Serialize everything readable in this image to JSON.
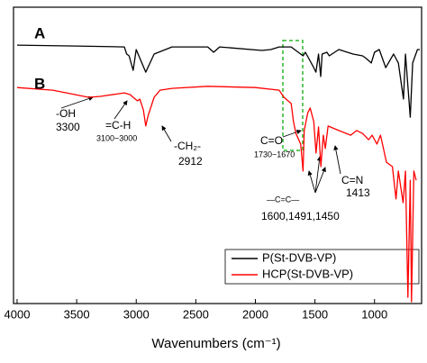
{
  "chart_data": {
    "type": "line",
    "x_label": "Wavenumbers (cm⁻¹)",
    "xlim": [
      4030,
      605
    ],
    "xticks": [
      4000,
      3500,
      3000,
      2500,
      2000,
      1500,
      1000
    ],
    "ylim": [
      0,
      100
    ],
    "legend": "lower right",
    "series": [
      {
        "name": "P(St-DVB-VP)",
        "color": "#000000",
        "x": [
          4000,
          3500,
          3100,
          3080,
          3060,
          3026,
          3000,
          2920,
          2850,
          2700,
          2400,
          2350,
          2300,
          1945,
          1870,
          1800,
          1700,
          1600,
          1580,
          1510,
          1492,
          1470,
          1452,
          1440,
          1400,
          1380,
          1300,
          1180,
          1100,
          1070,
          1028,
          1000,
          960,
          906,
          840,
          800,
          757,
          740,
          700,
          680,
          640,
          620
        ],
        "values": [
          87.2,
          86.9,
          86.6,
          84.2,
          83.6,
          78.7,
          85.7,
          78.1,
          84.2,
          86.6,
          86.6,
          84.8,
          86.6,
          85.4,
          85.7,
          86.6,
          86.6,
          83.6,
          84.8,
          79.6,
          78.1,
          84.2,
          76.6,
          84.2,
          84.8,
          83.6,
          85.7,
          84.2,
          83.6,
          82.7,
          81.2,
          84.8,
          85.7,
          79.6,
          84.2,
          81.2,
          69.0,
          84.2,
          62.9,
          81.2,
          85.7,
          85.7
        ]
      },
      {
        "name": "HCP(St-DVB-VP)",
        "color": "#ff0000",
        "x": [
          4000,
          3700,
          3400,
          3300,
          3100,
          3050,
          3026,
          2990,
          2970,
          2940,
          2920,
          2900,
          2850,
          2800,
          2700,
          2400,
          2000,
          1800,
          1760,
          1700,
          1680,
          1660,
          1620,
          1600,
          1590,
          1560,
          1540,
          1510,
          1491,
          1470,
          1450,
          1430,
          1413,
          1390,
          1300,
          1200,
          1150,
          1100,
          1050,
          1020,
          980,
          950,
          900,
          850,
          820,
          800,
          760,
          740,
          720,
          700,
          690,
          670,
          650
        ],
        "values": [
          72.9,
          72.0,
          69.6,
          69.9,
          71.1,
          70.5,
          69.6,
          68.4,
          69.0,
          65.3,
          59.9,
          63.5,
          69.6,
          72.0,
          72.6,
          73.3,
          72.9,
          72.0,
          69.6,
          67.5,
          61.4,
          57.4,
          53.8,
          44.7,
          58.4,
          64.4,
          66.0,
          61.4,
          50.8,
          59.6,
          46.2,
          56.8,
          52.3,
          59.9,
          58.4,
          56.8,
          58.4,
          57.4,
          55.3,
          56.8,
          53.8,
          56.8,
          47.7,
          46.2,
          35.3,
          44.7,
          34.0,
          44.7,
          2.1,
          41.6,
          0.6,
          44.7,
          41.6
        ]
      }
    ],
    "annotations": [
      "A",
      "B",
      "-OH",
      "3300",
      "=C-H",
      "3100~3000",
      "-CH₂-",
      "2912",
      "C=O",
      "1730~1670",
      "—C=C—",
      "1600,1491,1450",
      "C=N",
      "1413"
    ]
  }
}
